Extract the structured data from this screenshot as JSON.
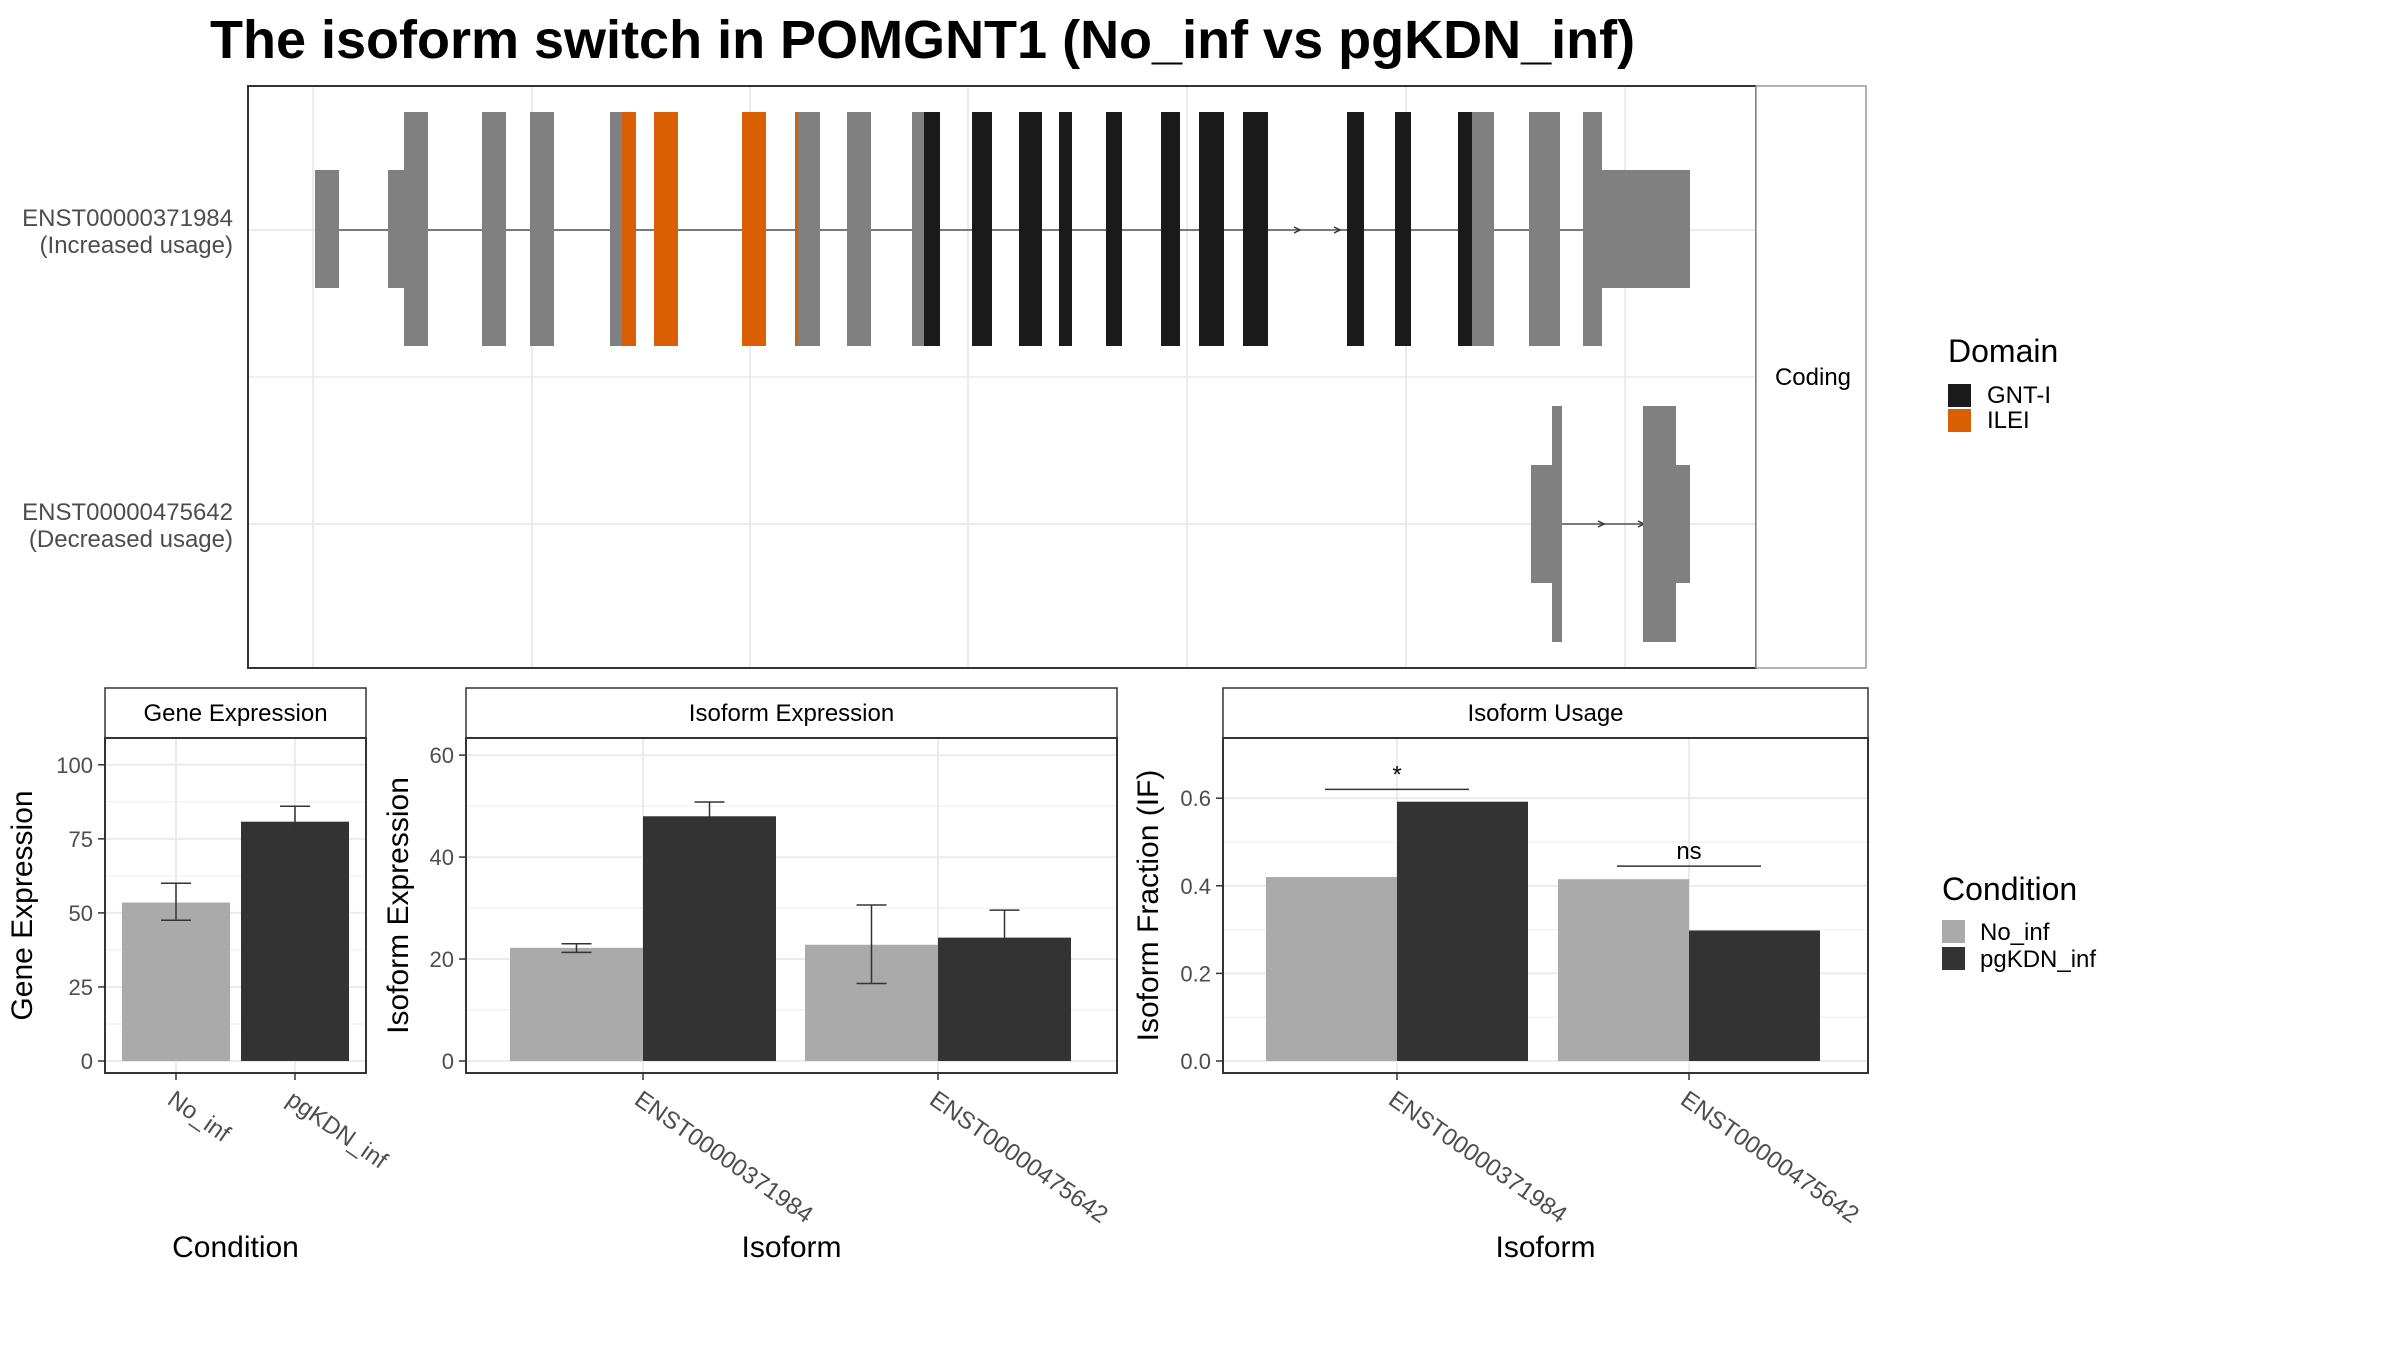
{
  "title": "The isoform switch in POMGNT1 (No_inf vs pgKDN_inf)",
  "structure": {
    "facet_label": "Coding",
    "transcripts": [
      {
        "id": "ENST00000371984",
        "usage": "(Increased usage)"
      },
      {
        "id": "ENST00000475642",
        "usage": "(Decreased usage)"
      }
    ],
    "domain_legend": {
      "title": "Domain",
      "items": [
        {
          "label": "GNT-I",
          "color": "#1a1a1a"
        },
        {
          "label": "ILEI",
          "color": "#d95f02"
        }
      ]
    },
    "exon_color": "#808080"
  },
  "condition_legend": {
    "title": "Condition",
    "items": [
      {
        "label": "No_inf",
        "color": "#aaaaaa"
      },
      {
        "label": "pgKDN_inf",
        "color": "#333333"
      }
    ]
  },
  "chart_data": [
    {
      "type": "bar",
      "title": "Gene Expression",
      "xlabel": "Condition",
      "ylabel": "Gene Expression",
      "ylim": [
        0,
        105
      ],
      "yticks": [
        0,
        25,
        50,
        75,
        100
      ],
      "categories": [
        "No_inf",
        "pgKDN_inf"
      ],
      "values": [
        53.5,
        80.8
      ],
      "errors": [
        [
          47.5,
          60
        ],
        [
          76,
          86
        ]
      ]
    },
    {
      "type": "bar",
      "title": "Isoform Expression",
      "xlabel": "Isoform",
      "ylabel": "Isoform Expression",
      "ylim": [
        0,
        61
      ],
      "yticks": [
        0,
        20,
        40,
        60
      ],
      "categories": [
        "ENST00000371984",
        "ENST00000475642"
      ],
      "series": [
        {
          "name": "No_inf",
          "values": [
            22.2,
            22.8
          ],
          "errors": [
            [
              21.3,
              23
            ],
            [
              15.2,
              30.6
            ]
          ]
        },
        {
          "name": "pgKDN_inf",
          "values": [
            48,
            24.2
          ],
          "errors": [
            [
              45.2,
              50.8
            ],
            [
              19,
              29.6
            ]
          ]
        }
      ]
    },
    {
      "type": "bar",
      "title": "Isoform Usage",
      "xlabel": "Isoform",
      "ylabel": "Isoform Fraction (IF)",
      "ylim": [
        0,
        0.71
      ],
      "yticks": [
        0.0,
        0.2,
        0.4,
        0.6
      ],
      "categories": [
        "ENST00000371984",
        "ENST00000475642"
      ],
      "series": [
        {
          "name": "No_inf",
          "values": [
            0.42,
            0.415
          ]
        },
        {
          "name": "pgKDN_inf",
          "values": [
            0.592,
            0.298
          ]
        }
      ],
      "annotations": [
        {
          "category": "ENST00000371984",
          "label": "*",
          "y": 0.62
        },
        {
          "category": "ENST00000475642",
          "label": "ns",
          "y": 0.445
        }
      ]
    }
  ]
}
